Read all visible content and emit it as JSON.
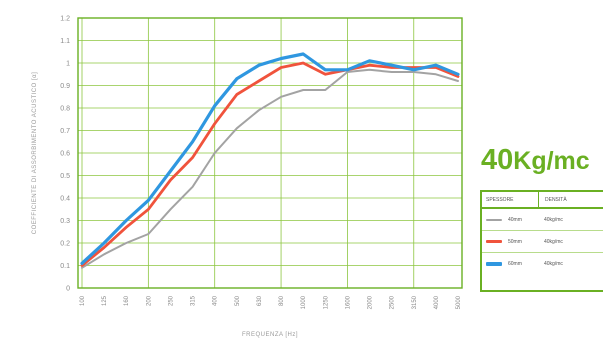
{
  "chart_data": {
    "type": "line",
    "title": "40Kg/mc",
    "title_number": "40",
    "title_unit": "Kg/mc",
    "ylabel": "COEFFICIENTE DI ASSORBIMENTO ACUSTICO [α]",
    "xlabel": "FREQUENZA [Hz]",
    "ylim": [
      0,
      1.2
    ],
    "yticks": [
      "0",
      "0.1",
      "0.2",
      "0.3",
      "0.4",
      "0.5",
      "0.6",
      "0.7",
      "0.8",
      "0.9",
      "1",
      "1.1",
      "1.2"
    ],
    "categories": [
      "100",
      "125",
      "160",
      "200",
      "250",
      "315",
      "400",
      "500",
      "630",
      "800",
      "1000",
      "1250",
      "1600",
      "2000",
      "2500",
      "3150",
      "4000",
      "5000"
    ],
    "grid": true,
    "series": [
      {
        "name": "40mm",
        "color": "#a3a3a3",
        "values": [
          0.09,
          0.15,
          0.2,
          0.24,
          0.35,
          0.45,
          0.6,
          0.71,
          0.79,
          0.85,
          0.88,
          0.88,
          0.96,
          0.97,
          0.96,
          0.96,
          0.95,
          0.92
        ]
      },
      {
        "name": "50mm",
        "color": "#f0533c",
        "values": [
          0.1,
          0.18,
          0.27,
          0.35,
          0.48,
          0.58,
          0.73,
          0.86,
          0.92,
          0.98,
          1.0,
          0.95,
          0.97,
          0.99,
          0.98,
          0.98,
          0.98,
          0.94
        ]
      },
      {
        "name": "60mm",
        "color": "#2f97e0",
        "values": [
          0.11,
          0.2,
          0.3,
          0.39,
          0.52,
          0.65,
          0.81,
          0.93,
          0.99,
          1.02,
          1.04,
          0.97,
          0.97,
          1.01,
          0.99,
          0.97,
          0.99,
          0.95
        ]
      }
    ],
    "legend": {
      "header_thickness": "SPESSORE",
      "header_density": "DENSITÀ",
      "density_label": "40kg/mc",
      "placement": "right"
    }
  }
}
